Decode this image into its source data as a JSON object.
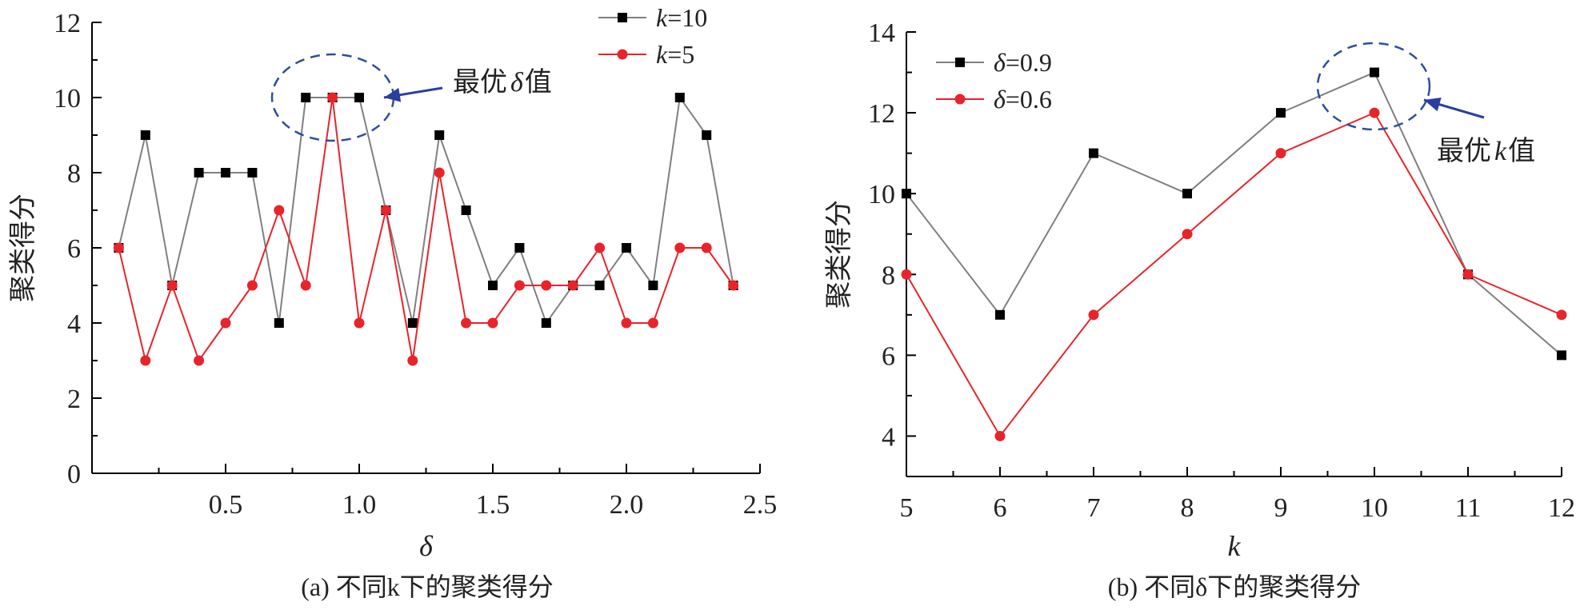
{
  "chart_data": [
    {
      "type": "line",
      "panel": "a",
      "caption": "(a) 不同k下的聚类得分",
      "xlabel": "δ",
      "ylabel": "聚类得分",
      "xlim": [
        0,
        2.5
      ],
      "ylim": [
        0,
        12
      ],
      "xticks": [
        0.5,
        1.0,
        1.5,
        2.0,
        2.5
      ],
      "xtick_labels": [
        "0.5",
        "1.0",
        "1.5",
        "2.0",
        "2.5"
      ],
      "yticks": [
        0,
        2,
        4,
        6,
        8,
        10,
        12
      ],
      "ytick_labels": [
        "0",
        "2",
        "4",
        "6",
        "8",
        "10",
        "12"
      ],
      "x": [
        0.1,
        0.2,
        0.3,
        0.4,
        0.5,
        0.6,
        0.7,
        0.8,
        0.9,
        1.0,
        1.1,
        1.2,
        1.3,
        1.4,
        1.5,
        1.6,
        1.7,
        1.8,
        1.9,
        2.0,
        2.1,
        2.2,
        2.3,
        2.4
      ],
      "series": [
        {
          "name": "k=10",
          "legend_var": "k",
          "legend_val": "=10",
          "color": "#808080",
          "marker": "square",
          "marker_color": "#000000",
          "values": [
            6,
            9,
            5,
            8,
            8,
            8,
            4,
            10,
            10,
            10,
            7,
            4,
            9,
            7,
            5,
            6,
            4,
            5,
            5,
            6,
            5,
            10,
            9,
            5
          ]
        },
        {
          "name": "k=5",
          "legend_var": "k",
          "legend_val": "=5",
          "color": "#e8242b",
          "marker": "circle",
          "marker_color": "#e8242b",
          "values": [
            6,
            3,
            5,
            3,
            4,
            5,
            7,
            5,
            10,
            4,
            7,
            3,
            8,
            4,
            4,
            5,
            5,
            5,
            6,
            4,
            4,
            6,
            6,
            5
          ]
        }
      ],
      "legend_position": "top-right",
      "annotation": {
        "text_prefix": "最优",
        "text_var": "δ",
        "text_suffix": "值",
        "target_x": 0.9,
        "target_y": 10
      }
    },
    {
      "type": "line",
      "panel": "b",
      "caption": "(b) 不同δ下的聚类得分",
      "xlabel": "k",
      "ylabel": "聚类得分",
      "xlim": [
        5,
        12
      ],
      "ylim": [
        3,
        14
      ],
      "xticks": [
        5,
        6,
        7,
        8,
        9,
        10,
        11,
        12
      ],
      "xtick_labels": [
        "5",
        "6",
        "7",
        "8",
        "9",
        "10",
        "11",
        "12"
      ],
      "yticks": [
        4,
        6,
        8,
        10,
        12,
        14
      ],
      "ytick_labels": [
        "4",
        "6",
        "8",
        "10",
        "12",
        "14"
      ],
      "x": [
        5,
        6,
        7,
        8,
        9,
        10,
        11,
        12
      ],
      "series": [
        {
          "name": "δ=0.9",
          "legend_var": "δ",
          "legend_val": "=0.9",
          "color": "#808080",
          "marker": "square",
          "marker_color": "#000000",
          "values": [
            10,
            7,
            11,
            10,
            12,
            13,
            8,
            6
          ]
        },
        {
          "name": "δ=0.6",
          "legend_var": "δ",
          "legend_val": "=0.6",
          "color": "#e8242b",
          "marker": "circle",
          "marker_color": "#e8242b",
          "values": [
            8,
            4,
            7,
            9,
            11,
            12,
            8,
            7
          ]
        }
      ],
      "legend_position": "top-left",
      "annotation": {
        "text_prefix": "最优",
        "text_var": "k",
        "text_suffix": "值",
        "target_x": 10,
        "target_y": 12.5
      }
    }
  ],
  "colors": {
    "axis": "#000000",
    "annot_circle": "#2e4d9e",
    "annot_arrow": "#2a3f9d"
  }
}
